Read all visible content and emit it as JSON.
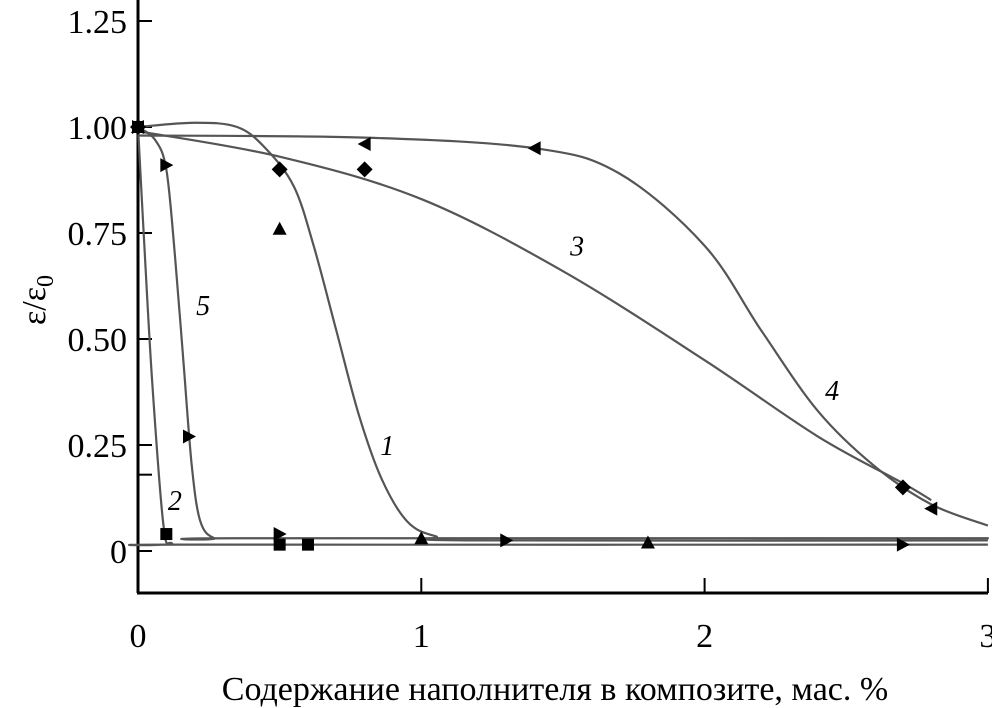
{
  "chart_data": {
    "type": "line",
    "xlabel": "Содержание наполнителя в композите, мас. %",
    "ylabel": "ε/ε",
    "ylabel_subscript": "0",
    "xlim": [
      0,
      3
    ],
    "ylim": [
      -0.1,
      1.3
    ],
    "xticks": [
      "0",
      "1",
      "2",
      "3"
    ],
    "yticks": [
      "0",
      "0.25",
      "0.50",
      "0.75",
      "1.00",
      "1.25"
    ],
    "grid": false,
    "line_color": "#555555",
    "marker_color": "#000000",
    "series": [
      {
        "name": "1",
        "marker": "triangle-up",
        "curve": [
          [
            0,
            1.0
          ],
          [
            0.2,
            1.01
          ],
          [
            0.35,
            1.0
          ],
          [
            0.45,
            0.95
          ],
          [
            0.55,
            0.86
          ],
          [
            0.62,
            0.72
          ],
          [
            0.7,
            0.52
          ],
          [
            0.78,
            0.32
          ],
          [
            0.86,
            0.17
          ],
          [
            0.95,
            0.07
          ],
          [
            1.05,
            0.035
          ],
          [
            1.2,
            0.025
          ],
          [
            3,
            0.025
          ]
        ],
        "points": [
          [
            0,
            1.0
          ],
          [
            0.5,
            0.76
          ],
          [
            1.0,
            0.03
          ],
          [
            1.8,
            0.02
          ]
        ]
      },
      {
        "name": "2",
        "marker": "square",
        "curve": [
          [
            0,
            1.0
          ],
          [
            0.02,
            0.75
          ],
          [
            0.05,
            0.4
          ],
          [
            0.09,
            0.06
          ],
          [
            0.12,
            0.018
          ],
          [
            0.2,
            0.015
          ],
          [
            3,
            0.015
          ]
        ],
        "points": [
          [
            0,
            1.0
          ],
          [
            0.1,
            0.04
          ],
          [
            0.5,
            0.015
          ],
          [
            0.6,
            0.015
          ]
        ]
      },
      {
        "name": "3",
        "marker": "diamond",
        "curve": [
          [
            0,
            0.99
          ],
          [
            0.5,
            0.93
          ],
          [
            1.0,
            0.83
          ],
          [
            1.5,
            0.66
          ],
          [
            2.0,
            0.45
          ],
          [
            2.4,
            0.27
          ],
          [
            2.7,
            0.16
          ],
          [
            2.8,
            0.12
          ]
        ],
        "points": [
          [
            0,
            1.0
          ],
          [
            0.5,
            0.9
          ],
          [
            0.8,
            0.9
          ],
          [
            2.7,
            0.15
          ]
        ]
      },
      {
        "name": "4",
        "marker": "triangle-left",
        "curve": [
          [
            0,
            0.98
          ],
          [
            0.8,
            0.975
          ],
          [
            1.4,
            0.95
          ],
          [
            1.7,
            0.89
          ],
          [
            2.0,
            0.72
          ],
          [
            2.2,
            0.52
          ],
          [
            2.4,
            0.33
          ],
          [
            2.6,
            0.2
          ],
          [
            2.8,
            0.11
          ],
          [
            3.0,
            0.06
          ]
        ],
        "points": [
          [
            0,
            1.0
          ],
          [
            0.8,
            0.96
          ],
          [
            1.4,
            0.95
          ],
          [
            2.8,
            0.1
          ]
        ]
      },
      {
        "name": "5",
        "marker": "triangle-right",
        "curve": [
          [
            0,
            1.0
          ],
          [
            0.06,
            0.97
          ],
          [
            0.1,
            0.9
          ],
          [
            0.13,
            0.7
          ],
          [
            0.16,
            0.45
          ],
          [
            0.19,
            0.2
          ],
          [
            0.22,
            0.07
          ],
          [
            0.27,
            0.03
          ],
          [
            0.35,
            0.03
          ],
          [
            2.7,
            0.03
          ],
          [
            3,
            0.03
          ]
        ],
        "points": [
          [
            0,
            1.0
          ],
          [
            0.1,
            0.91
          ],
          [
            0.18,
            0.27
          ],
          [
            0.5,
            0.04
          ],
          [
            1.3,
            0.025
          ],
          [
            2.7,
            0.015
          ]
        ]
      }
    ],
    "annotations": [
      {
        "text": "1",
        "x": 0.88,
        "y": 0.25
      },
      {
        "text": "2",
        "x": 0.13,
        "y": 0.12
      },
      {
        "text": "3",
        "x": 1.55,
        "y": 0.72
      },
      {
        "text": "4",
        "x": 2.45,
        "y": 0.38
      },
      {
        "text": "5",
        "x": 0.23,
        "y": 0.58
      }
    ]
  }
}
